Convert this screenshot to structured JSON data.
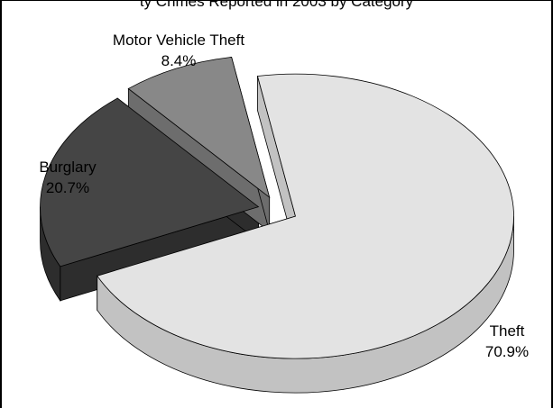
{
  "chart_data": {
    "type": "pie",
    "title_partial": "ty Crimes Reported in 2003 by Category",
    "slices": [
      {
        "label": "Theft",
        "percent_label": "70.9%",
        "value": 70.9,
        "exploded": true,
        "color": "#e3e3e3",
        "side_color": "#c2c2c2"
      },
      {
        "label": "Burglary",
        "percent_label": "20.7%",
        "value": 20.7,
        "exploded": true,
        "color": "#454545",
        "side_color": "#2d2d2d"
      },
      {
        "label": "Motor Vehicle Theft",
        "percent_label": "8.4%",
        "value": 8.4,
        "exploded": true,
        "color": "#888888",
        "side_color": "#6d6d6d"
      }
    ],
    "three_d": true,
    "legend": "none"
  }
}
